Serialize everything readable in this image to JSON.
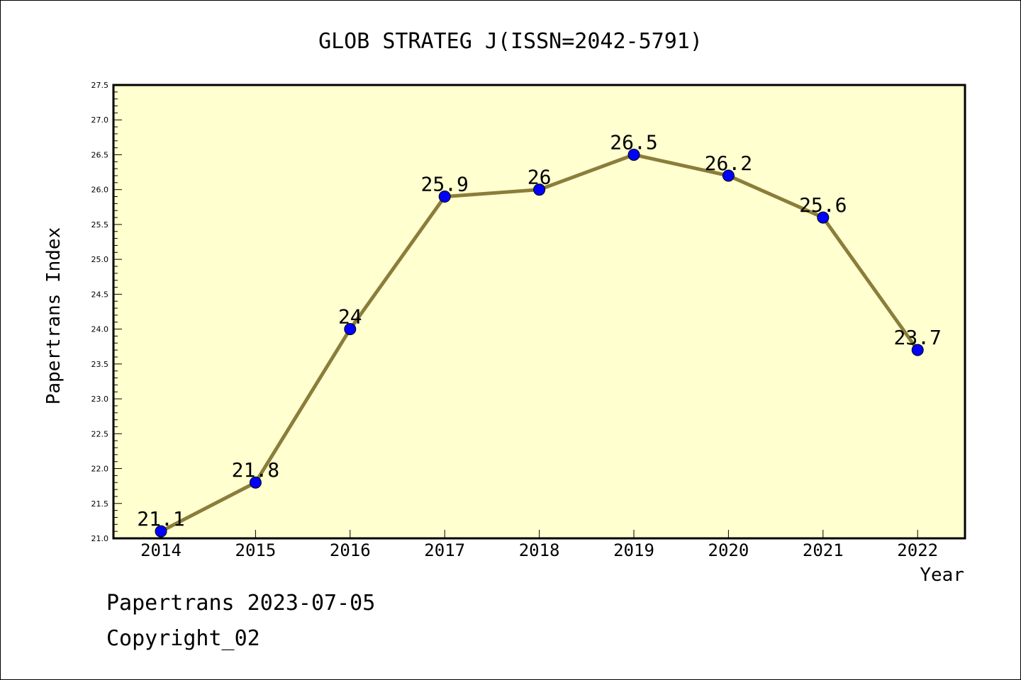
{
  "chart_data": {
    "type": "line",
    "title": "GLOB STRATEG J(ISSN=2042-5791)",
    "xlabel": "Year",
    "ylabel": "Papertrans Index",
    "categories": [
      "2014",
      "2015",
      "2016",
      "2017",
      "2018",
      "2019",
      "2020",
      "2021",
      "2022"
    ],
    "values": [
      21.1,
      21.8,
      24.0,
      25.9,
      26.0,
      26.5,
      26.2,
      25.6,
      23.7
    ],
    "data_labels": [
      "21.1",
      "21.8",
      "24",
      "25.9",
      "26",
      "26.5",
      "26.2",
      "25.6",
      "23.7"
    ],
    "ylim": [
      21.0,
      27.5
    ],
    "y_ticks": [
      "21.0",
      "21.5",
      "22.0",
      "22.5",
      "23.0",
      "23.5",
      "24.0",
      "24.5",
      "25.0",
      "25.5",
      "26.0",
      "26.5",
      "27.0",
      "27.5"
    ],
    "grid": false,
    "legend": "none",
    "colors": {
      "plot_background": "#ffffd0",
      "line": "#8b7d3a",
      "marker": "#0000ff"
    }
  },
  "footer": {
    "line1": "Papertrans 2023-07-05",
    "line2": "Copyright_02"
  }
}
